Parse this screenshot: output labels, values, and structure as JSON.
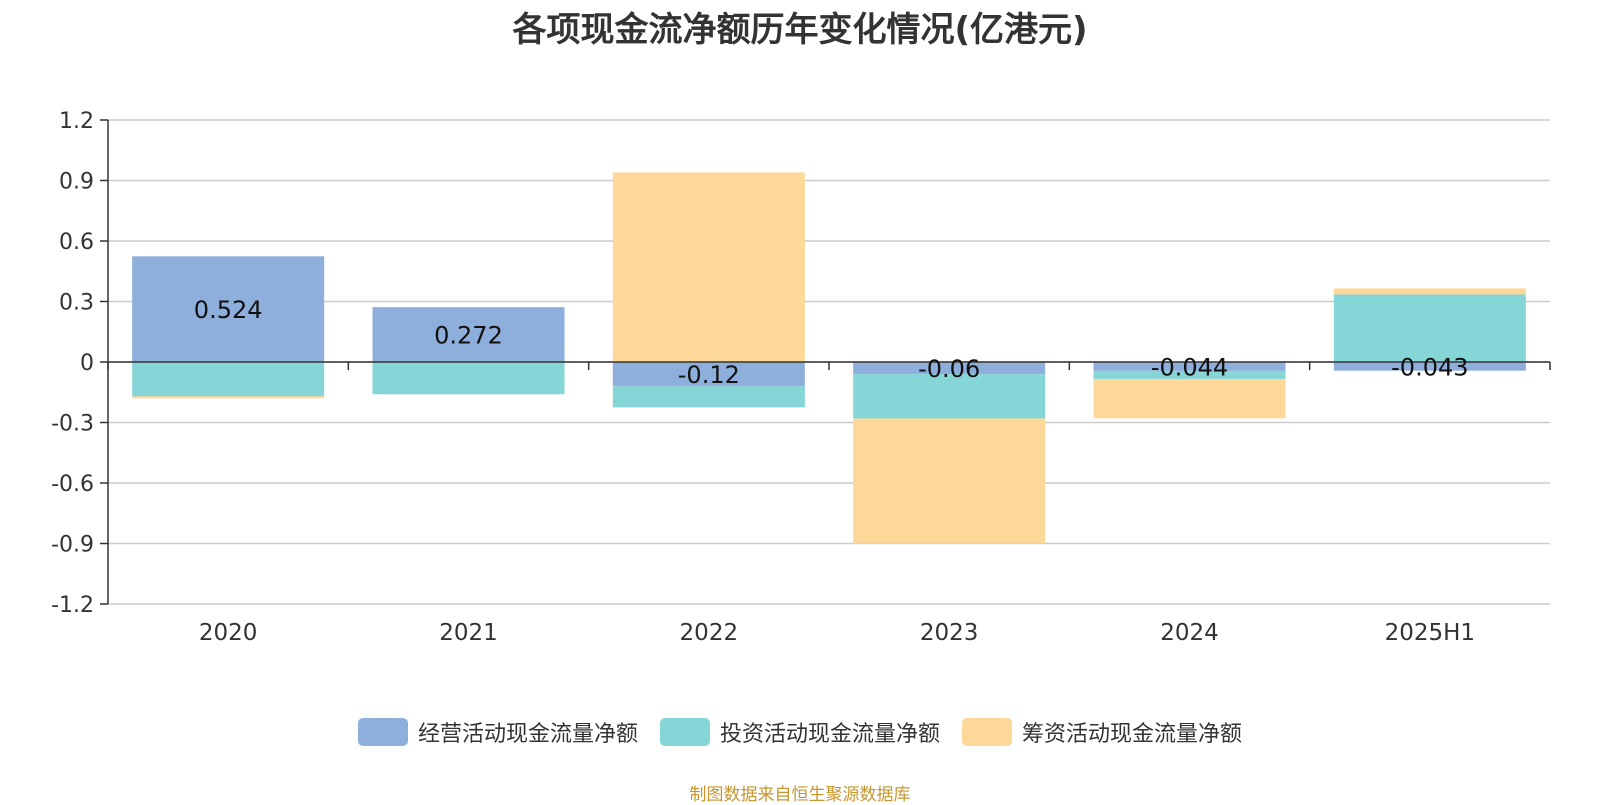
{
  "chart_data": {
    "type": "bar",
    "stacked": true,
    "title": "各项现金流净额历年变化情况(亿港元)",
    "categories": [
      "2020",
      "2021",
      "2022",
      "2023",
      "2024",
      "2025H1"
    ],
    "series": [
      {
        "name": "经营活动现金流量净额",
        "color": "#8eaedb",
        "values": [
          0.524,
          0.272,
          -0.12,
          -0.06,
          -0.044,
          -0.043
        ],
        "labels": [
          "0.524",
          "0.272",
          "-0.12",
          "-0.06",
          "-0.044",
          "-0.043"
        ]
      },
      {
        "name": "投资活动现金流量净额",
        "color": "#86d5d7",
        "values": [
          -0.17,
          -0.16,
          -0.105,
          -0.22,
          -0.04,
          0.335
        ]
      },
      {
        "name": "筹资活动现金流量净额",
        "color": "#fed898",
        "values": [
          -0.01,
          0.0,
          0.94,
          -0.62,
          -0.195,
          0.03
        ]
      }
    ],
    "ylim": [
      -1.2,
      1.2
    ],
    "yticks": [
      "1.2",
      "0.9",
      "0.6",
      "0.3",
      "0",
      "-0.3",
      "-0.6",
      "-0.9",
      "-1.2"
    ],
    "grid": true,
    "legend_position": "bottom"
  },
  "source": {
    "text": "制图数据来自恒生聚源数据库",
    "color": "#c8962e"
  }
}
